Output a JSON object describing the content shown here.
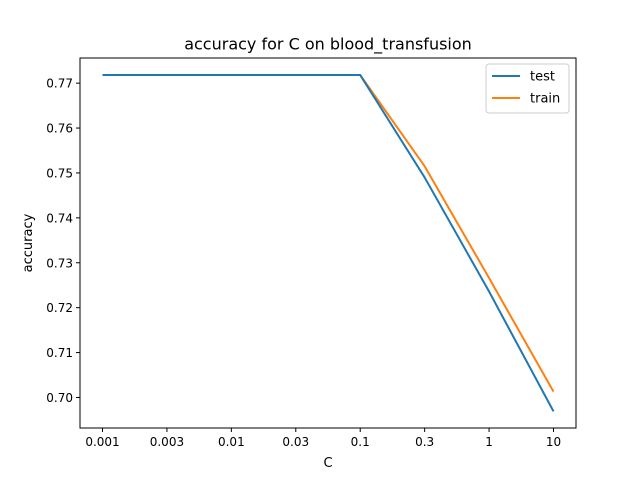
{
  "chart_data": {
    "type": "line",
    "title": "accuracy for C on  blood_transfusion",
    "xlabel": "C",
    "ylabel": "accuracy",
    "categories": [
      "0.001",
      "0.003",
      "0.01",
      "0.03",
      "0.1",
      "0.3",
      "1",
      "10"
    ],
    "series": [
      {
        "name": "test",
        "color": "#1f77b4",
        "values": [
          0.7718,
          0.7718,
          0.7718,
          0.7718,
          0.7718,
          0.749,
          0.7236,
          0.6969
        ]
      },
      {
        "name": "train",
        "color": "#ff7f0e",
        "values": [
          0.7718,
          0.7718,
          0.7718,
          0.7718,
          0.7718,
          0.7515,
          0.7266,
          0.7013
        ]
      }
    ],
    "yticks": [
      "0.70",
      "0.71",
      "0.72",
      "0.73",
      "0.74",
      "0.75",
      "0.76",
      "0.77"
    ],
    "ylim": [
      0.6932,
      0.7756
    ],
    "grid": false,
    "legend_position": "upper right"
  }
}
